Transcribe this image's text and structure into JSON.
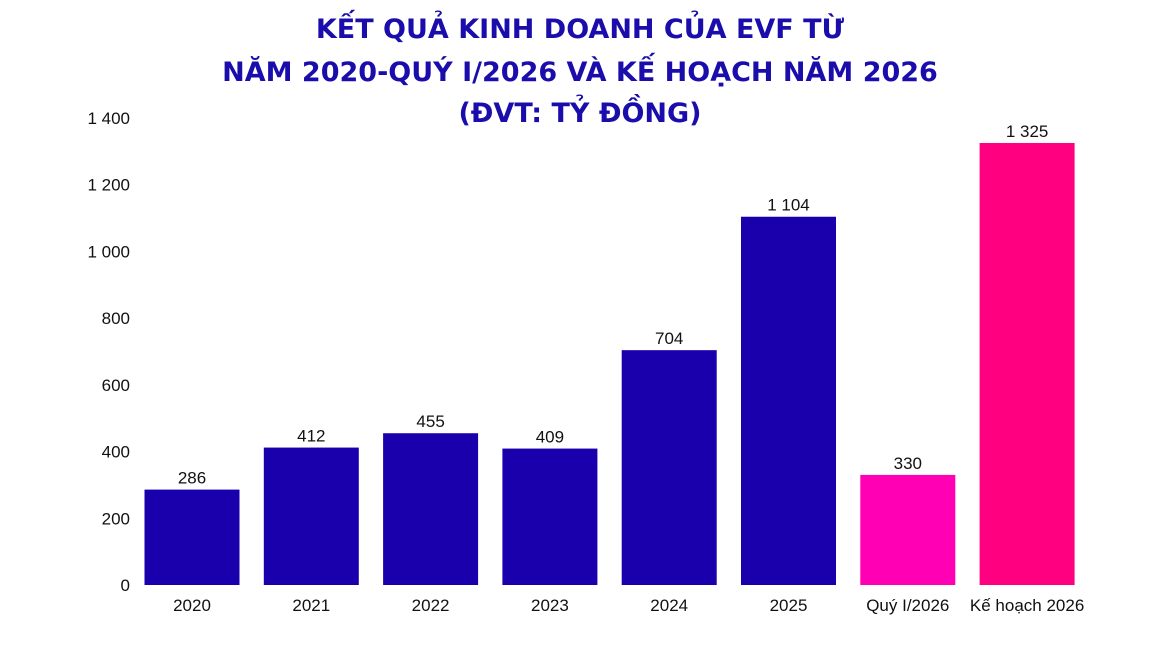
{
  "chart_data": {
    "type": "bar",
    "title_lines": [
      "KẾT QUẢ KINH DOANH CỦA EVF TỪ",
      "NĂM 2020-QUÝ I/2026 VÀ KẾ HOẠCH NĂM 2026",
      "(ĐVT: TỶ ĐỒNG)"
    ],
    "xlabel": "",
    "ylabel": "",
    "ylim": [
      0,
      1400
    ],
    "yticks": [
      0,
      200,
      400,
      600,
      800,
      1000,
      1200,
      1400
    ],
    "ytick_labels": [
      "0",
      "200",
      "400",
      "600",
      "800",
      "1 000",
      "1 200",
      "1 400"
    ],
    "grid": false,
    "categories": [
      "2020",
      "2021",
      "2022",
      "2023",
      "2024",
      "2025",
      "Quý I/2026",
      "Kế hoạch 2026"
    ],
    "values": [
      286,
      412,
      455,
      409,
      704,
      1104,
      330,
      1325
    ],
    "value_labels": [
      "286",
      "412",
      "455",
      "409",
      "704",
      "1 104",
      "330",
      "1 325"
    ],
    "bar_colors": [
      "#1a00ad",
      "#1a00ad",
      "#1a00ad",
      "#1a00ad",
      "#1a00ad",
      "#1a00ad",
      "#ff00b4",
      "#ff0080"
    ]
  }
}
